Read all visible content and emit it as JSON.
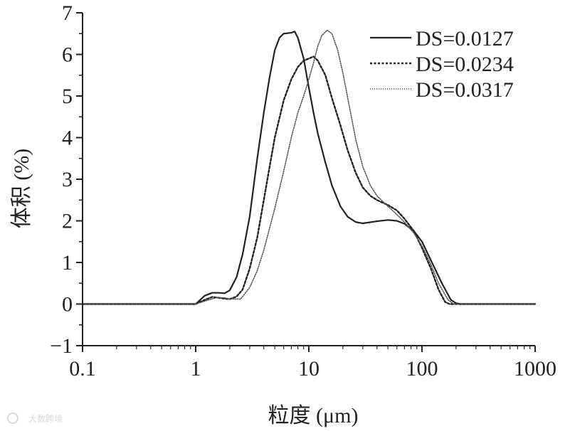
{
  "chart_data": {
    "type": "line",
    "xscale": "log",
    "xlim": [
      0.1,
      1000
    ],
    "ylim": [
      -1,
      7
    ],
    "xlabel": "粒度 (μm)",
    "ylabel": "体积 (%)",
    "x_ticks": [
      {
        "value": 0.1,
        "label": "0.1"
      },
      {
        "value": 1,
        "label": "1"
      },
      {
        "value": 10,
        "label": "10"
      },
      {
        "value": 100,
        "label": "100"
      },
      {
        "value": 1000,
        "label": "1000"
      }
    ],
    "y_ticks": [
      {
        "value": -1,
        "label": "−1"
      },
      {
        "value": 0,
        "label": "0"
      },
      {
        "value": 1,
        "label": "1"
      },
      {
        "value": 2,
        "label": "2"
      },
      {
        "value": 3,
        "label": "3"
      },
      {
        "value": 4,
        "label": "4"
      },
      {
        "value": 5,
        "label": "5"
      },
      {
        "value": 6,
        "label": "6"
      },
      {
        "value": 7,
        "label": "7"
      }
    ],
    "legend_position": "top-right",
    "series": [
      {
        "name": "DS=0.0127",
        "style": "solid",
        "color": "#222222",
        "points": [
          [
            0.1,
            0
          ],
          [
            1.0,
            0
          ],
          [
            1.2,
            0.2
          ],
          [
            1.4,
            0.27
          ],
          [
            1.6,
            0.27
          ],
          [
            1.8,
            0.26
          ],
          [
            2.0,
            0.33
          ],
          [
            2.3,
            0.65
          ],
          [
            2.6,
            1.2
          ],
          [
            3.0,
            2.1
          ],
          [
            3.5,
            3.5
          ],
          [
            4.0,
            4.6
          ],
          [
            4.5,
            5.45
          ],
          [
            5.0,
            6.1
          ],
          [
            5.5,
            6.4
          ],
          [
            6.0,
            6.5
          ],
          [
            7.0,
            6.52
          ],
          [
            7.5,
            6.55
          ],
          [
            8.0,
            6.4
          ],
          [
            9.0,
            5.9
          ],
          [
            10.0,
            5.2
          ],
          [
            11.0,
            4.6
          ],
          [
            12.0,
            4.1
          ],
          [
            14.0,
            3.4
          ],
          [
            16.0,
            2.85
          ],
          [
            19.0,
            2.35
          ],
          [
            22.0,
            2.1
          ],
          [
            26.0,
            1.97
          ],
          [
            30.0,
            1.94
          ],
          [
            40.0,
            1.99
          ],
          [
            50.0,
            2.02
          ],
          [
            60.0,
            2.0
          ],
          [
            70.0,
            1.93
          ],
          [
            85.0,
            1.75
          ],
          [
            100.0,
            1.5
          ],
          [
            120.0,
            1.05
          ],
          [
            150.0,
            0.5
          ],
          [
            180.0,
            0.1
          ],
          [
            200.0,
            0.02
          ],
          [
            220.0,
            0
          ],
          [
            1000.0,
            0
          ]
        ]
      },
      {
        "name": "DS=0.0234",
        "style": "dotted",
        "color": "#222222",
        "points": [
          [
            0.1,
            0
          ],
          [
            1.0,
            0
          ],
          [
            1.2,
            0.1
          ],
          [
            1.4,
            0.17
          ],
          [
            1.6,
            0.15
          ],
          [
            1.8,
            0.13
          ],
          [
            2.0,
            0.12
          ],
          [
            2.3,
            0.18
          ],
          [
            2.6,
            0.35
          ],
          [
            3.0,
            0.85
          ],
          [
            3.5,
            1.6
          ],
          [
            4.0,
            2.5
          ],
          [
            4.5,
            3.3
          ],
          [
            5.0,
            4.0
          ],
          [
            6.0,
            4.9
          ],
          [
            7.0,
            5.4
          ],
          [
            8.0,
            5.7
          ],
          [
            9.0,
            5.85
          ],
          [
            10.0,
            5.9
          ],
          [
            11.0,
            5.95
          ],
          [
            12.0,
            5.85
          ],
          [
            14.0,
            5.5
          ],
          [
            16.0,
            4.95
          ],
          [
            19.0,
            4.3
          ],
          [
            22.0,
            3.7
          ],
          [
            26.0,
            3.15
          ],
          [
            30.0,
            2.8
          ],
          [
            35.0,
            2.6
          ],
          [
            40.0,
            2.5
          ],
          [
            50.0,
            2.38
          ],
          [
            60.0,
            2.25
          ],
          [
            70.0,
            2.05
          ],
          [
            85.0,
            1.75
          ],
          [
            100.0,
            1.35
          ],
          [
            120.0,
            0.85
          ],
          [
            140.0,
            0.35
          ],
          [
            160.0,
            0.05
          ],
          [
            175.0,
            0
          ],
          [
            1000.0,
            0
          ]
        ]
      },
      {
        "name": "DS=0.0317",
        "style": "fine-dotted",
        "color": "#555555",
        "points": [
          [
            0.1,
            0
          ],
          [
            1.0,
            0
          ],
          [
            1.3,
            0.1
          ],
          [
            1.5,
            0.15
          ],
          [
            1.8,
            0.15
          ],
          [
            2.0,
            0.12
          ],
          [
            2.5,
            0.12
          ],
          [
            3.0,
            0.4
          ],
          [
            3.5,
            0.8
          ],
          [
            4.0,
            1.3
          ],
          [
            5.0,
            2.3
          ],
          [
            6.0,
            3.2
          ],
          [
            7.0,
            4.0
          ],
          [
            8.0,
            4.6
          ],
          [
            9.0,
            5.0
          ],
          [
            10.0,
            5.4
          ],
          [
            11.0,
            5.8
          ],
          [
            12.0,
            6.2
          ],
          [
            13.0,
            6.45
          ],
          [
            14.5,
            6.58
          ],
          [
            16.0,
            6.5
          ],
          [
            18.0,
            6.1
          ],
          [
            20.0,
            5.55
          ],
          [
            23.0,
            4.7
          ],
          [
            26.0,
            3.95
          ],
          [
            30.0,
            3.3
          ],
          [
            35.0,
            2.85
          ],
          [
            40.0,
            2.6
          ],
          [
            50.0,
            2.35
          ],
          [
            60.0,
            2.15
          ],
          [
            70.0,
            1.97
          ],
          [
            85.0,
            1.7
          ],
          [
            100.0,
            1.4
          ],
          [
            120.0,
            0.95
          ],
          [
            140.0,
            0.5
          ],
          [
            170.0,
            0.1
          ],
          [
            190.0,
            0
          ],
          [
            1000.0,
            0
          ]
        ]
      }
    ]
  },
  "watermark": {
    "text": "大数跨境"
  }
}
